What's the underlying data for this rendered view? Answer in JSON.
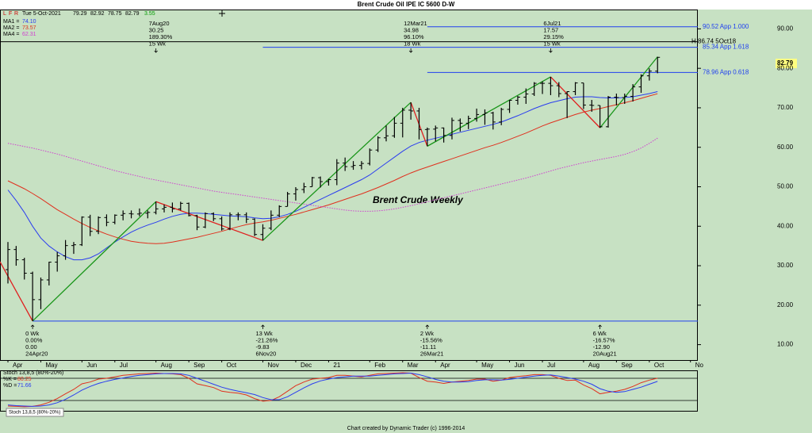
{
  "chart_data": {
    "type": "ohlc",
    "title": "Brent Crude Oil IPE IC 5600 D-W",
    "label": "Brent Crude Weekly",
    "date": "Tue 5-Oct-2021",
    "change": 3.55,
    "toolbar": [
      "L",
      "F",
      "R"
    ],
    "footer": "Chart created by Dynamic Trader  (c)  1996-2014",
    "categories": [
      "Apr",
      null,
      null,
      null,
      "May",
      null,
      null,
      null,
      null,
      "Jun",
      null,
      null,
      null,
      "Jul",
      null,
      null,
      null,
      null,
      "Aug",
      null,
      null,
      null,
      "Sep",
      null,
      null,
      null,
      "Oct",
      null,
      null,
      null,
      null,
      "Nov",
      null,
      null,
      null,
      "Dec",
      null,
      null,
      null,
      "21",
      null,
      null,
      null,
      null,
      "Feb",
      null,
      null,
      null,
      "Mar",
      null,
      null,
      null,
      "Apr",
      null,
      null,
      null,
      null,
      "May",
      null,
      null,
      null,
      "Jun",
      null,
      null,
      null,
      "Jul",
      null,
      null,
      null,
      null,
      "Aug",
      null,
      null,
      null,
      "Sep",
      null,
      null,
      null,
      "Oct",
      null,
      null,
      null,
      null,
      "No"
    ],
    "open": [
      29.0,
      34.1,
      31.5,
      28.1,
      21.4,
      26.4,
      30.9,
      32.5,
      35.1,
      35.3,
      42.3,
      38.7,
      42.2,
      41.0,
      42.8,
      43.2,
      43.1,
      43.3,
      43.5,
      44.4,
      44.8,
      44.4,
      45.8,
      42.7,
      39.8,
      43.2,
      41.9,
      39.3,
      42.9,
      42.9,
      41.8,
      37.9,
      39.5,
      42.8,
      45.0,
      48.2,
      49.3,
      50.0,
      52.3,
      51.3,
      51.8,
      56.0,
      55.1,
      55.4,
      55.9,
      59.3,
      62.4,
      62.9,
      66.1,
      69.4,
      69.2,
      64.5,
      64.6,
      64.9,
      63.0,
      66.8,
      66.1,
      67.3,
      68.3,
      68.7,
      66.4,
      69.6,
      71.9,
      72.7,
      73.5,
      76.2,
      76.2,
      75.6,
      73.6,
      74.1,
      76.3,
      70.7,
      70.6,
      65.2,
      72.7,
      72.6,
      72.9,
      75.3,
      78.1,
      79.29,
      null,
      null,
      null,
      null
    ],
    "high": [
      36.0,
      35.0,
      32.0,
      28.5,
      27.0,
      31.0,
      33.5,
      36.5,
      36.0,
      42.5,
      42.9,
      42.5,
      43.0,
      43.0,
      44.0,
      44.0,
      44.5,
      44.0,
      46.23,
      45.5,
      46.0,
      46.2,
      46.0,
      42.9,
      43.5,
      43.5,
      42.5,
      43.5,
      43.5,
      43.5,
      42.0,
      40.5,
      44.0,
      45.3,
      48.7,
      49.9,
      51.0,
      52.5,
      52.6,
      52.0,
      57.0,
      57.4,
      56.5,
      56.5,
      59.7,
      62.8,
      65.5,
      67.7,
      70.0,
      71.38,
      70.0,
      65.0,
      65.5,
      65.0,
      67.5,
      67.3,
      68.0,
      69.8,
      69.6,
      69.0,
      70.0,
      72.0,
      73.0,
      74.9,
      76.5,
      76.7,
      77.84,
      76.5,
      74.2,
      76.5,
      76.3,
      72.0,
      70.6,
      73.0,
      73.6,
      73.6,
      76.0,
      78.5,
      80.0,
      82.92,
      null,
      null,
      null,
      null
    ],
    "low": [
      25.5,
      30.0,
      26.5,
      15.98,
      19.0,
      25.0,
      28.5,
      31.5,
      33.0,
      35.0,
      37.5,
      38.0,
      40.0,
      40.5,
      41.5,
      42.0,
      42.5,
      42.0,
      43.0,
      43.5,
      43.5,
      44.0,
      42.5,
      39.0,
      39.5,
      41.3,
      38.9,
      39.0,
      41.5,
      40.8,
      37.5,
      36.4,
      39.0,
      42.3,
      45.0,
      46.5,
      48.4,
      50.0,
      49.8,
      50.3,
      50.4,
      54.0,
      54.3,
      54.4,
      55.4,
      58.8,
      61.5,
      62.4,
      62.5,
      67.0,
      62.0,
      60.27,
      61.5,
      61.2,
      62.0,
      64.0,
      64.6,
      66.5,
      65.7,
      64.5,
      65.6,
      68.7,
      70.8,
      71.0,
      73.0,
      73.5,
      73.2,
      72.7,
      67.4,
      73.2,
      69.7,
      69.0,
      64.94,
      65.0,
      70.6,
      71.0,
      71.6,
      73.8,
      76.9,
      78.75,
      null,
      null,
      null,
      null
    ],
    "close": [
      34.1,
      31.5,
      28.1,
      21.4,
      26.4,
      30.9,
      32.5,
      35.1,
      35.3,
      42.3,
      38.7,
      42.2,
      41.0,
      42.8,
      43.2,
      43.1,
      43.3,
      43.5,
      44.4,
      44.8,
      44.4,
      45.8,
      42.7,
      39.8,
      43.2,
      41.9,
      39.3,
      42.9,
      42.9,
      41.8,
      37.9,
      39.5,
      42.8,
      45.0,
      48.2,
      49.3,
      50.0,
      52.3,
      51.3,
      51.8,
      56.0,
      55.1,
      55.4,
      55.9,
      59.3,
      62.4,
      62.9,
      66.1,
      69.4,
      69.2,
      64.5,
      64.6,
      64.9,
      63.0,
      66.8,
      66.1,
      67.3,
      68.3,
      68.7,
      66.4,
      69.6,
      71.9,
      72.7,
      73.5,
      76.2,
      76.2,
      75.6,
      73.6,
      74.1,
      76.3,
      70.7,
      70.6,
      65.2,
      72.7,
      72.6,
      72.9,
      75.3,
      78.1,
      79.3,
      82.79,
      null,
      null,
      null,
      null
    ],
    "color": "#000000",
    "series": [
      {
        "name": "MA1 =",
        "color": "#2a3cf0",
        "value_label": "74.10",
        "values": [
          49.2,
          46.5,
          43.5,
          40,
          37,
          35,
          33.5,
          32.3,
          31.5,
          31.5,
          32,
          33,
          34.5,
          36,
          37.3,
          38.5,
          39.5,
          40.3,
          41,
          41.8,
          42.5,
          43,
          43.3,
          43.3,
          43.2,
          43,
          42.8,
          42.6,
          42.5,
          42.4,
          42.1,
          41.9,
          42,
          42.4,
          43,
          43.8,
          44.8,
          45.8,
          46.8,
          47.8,
          48.8,
          49.8,
          50.8,
          51.8,
          53,
          54.5,
          56,
          57.5,
          59,
          60.3,
          61.2,
          61.8,
          62.3,
          62.8,
          63.3,
          63.8,
          64.3,
          64.8,
          65.3,
          65.8,
          66.4,
          67.2,
          68,
          68.9,
          69.8,
          70.6,
          71.3,
          71.8,
          72.3,
          72.7,
          72.8,
          72.8,
          72.6,
          72.5,
          72.5,
          72.6,
          72.8,
          73.2,
          73.6,
          74.1,
          null,
          null,
          null,
          null
        ]
      },
      {
        "name": "MA2 =",
        "color": "#e0301e",
        "value_label": "73.57",
        "values": [
          51.5,
          50.5,
          49.5,
          48.3,
          47,
          45.6,
          44.2,
          43,
          41.8,
          40.7,
          39.7,
          38.8,
          38,
          37.3,
          36.7,
          36.2,
          35.9,
          35.7,
          35.6,
          35.7,
          36,
          36.4,
          36.8,
          37.2,
          37.7,
          38.2,
          38.7,
          39.3,
          39.9,
          40.4,
          40.8,
          41.1,
          41.5,
          42,
          42.5,
          43,
          43.6,
          44.2,
          44.8,
          45.4,
          46.1,
          46.8,
          47.5,
          48.2,
          49,
          49.8,
          50.7,
          51.6,
          52.6,
          53.5,
          54.3,
          55,
          55.7,
          56.4,
          57.1,
          57.8,
          58.5,
          59.2,
          59.9,
          60.5,
          61.2,
          62,
          62.8,
          63.6,
          64.5,
          65.4,
          66.2,
          66.9,
          67.6,
          68.3,
          68.9,
          69.4,
          69.8,
          70.3,
          70.8,
          71.3,
          71.8,
          72.4,
          73,
          73.57,
          null,
          null,
          null,
          null
        ]
      },
      {
        "name": "MA4 =",
        "color": "#d040d0",
        "value_label": "62.31",
        "style": "dotted",
        "values": [
          61,
          60.6,
          60.2,
          59.8,
          59.3,
          58.8,
          58.3,
          57.7,
          57.1,
          56.5,
          55.9,
          55.3,
          54.7,
          54.1,
          53.6,
          53.1,
          52.6,
          52.1,
          51.7,
          51.3,
          50.9,
          50.5,
          50.1,
          49.7,
          49.3,
          48.9,
          48.6,
          48.3,
          48,
          47.7,
          47.4,
          47.1,
          46.8,
          46.5,
          46.2,
          45.9,
          45.6,
          45.3,
          45,
          44.7,
          44.4,
          44.1,
          43.9,
          43.8,
          43.8,
          43.9,
          44.1,
          44.4,
          44.8,
          45.2,
          45.7,
          46.2,
          46.7,
          47.2,
          47.7,
          48.2,
          48.7,
          49.2,
          49.7,
          50.2,
          50.7,
          51.2,
          51.7,
          52.2,
          52.8,
          53.4,
          54,
          54.6,
          55.1,
          55.6,
          56.1,
          56.5,
          56.9,
          57.3,
          57.7,
          58.2,
          58.9,
          59.8,
          61,
          62.31,
          null,
          null,
          null,
          null
        ]
      }
    ],
    "swings": {
      "x": [
        0,
        3,
        18,
        31,
        49,
        51,
        66,
        72,
        79
      ],
      "values": [
        31,
        15.98,
        46.23,
        36.4,
        71.38,
        60.27,
        77.84,
        64.94,
        82.92
      ],
      "up_color": "#1a961a",
      "down_color": "#e01e1e"
    },
    "levels": [
      {
        "value": 90.52,
        "label": "90.52 App 1.000",
        "start": 51,
        "color": "#2040f0"
      },
      {
        "value": 86.74,
        "label": "H 86.74 5Oct18",
        "color": "#000000"
      },
      {
        "value": 85.34,
        "label": "85.34 App 1.618",
        "start": 31,
        "color": "#2040f0"
      },
      {
        "value": 78.96,
        "label": "78.96 App 0.618",
        "start": 51,
        "color": "#2040f0"
      },
      {
        "value": 15.98,
        "start": 3,
        "color": "#2040f0"
      }
    ],
    "annotations": [
      {
        "at": 18,
        "side": "top",
        "lines": [
          "7Aug20",
          "30.25",
          "189.30%",
          "15 Wk"
        ]
      },
      {
        "at": 49,
        "side": "top",
        "lines": [
          "12Mar21",
          "34.98",
          "96.10%",
          "18 Wk"
        ]
      },
      {
        "at": 66,
        "side": "top",
        "lines": [
          "6Jul21",
          "17.57",
          "29.15%",
          "15 Wk"
        ]
      },
      {
        "at": 3,
        "side": "bottom",
        "lines": [
          "0 Wk",
          "0.00%",
          "0.00",
          "24Apr20"
        ]
      },
      {
        "at": 31,
        "side": "bottom",
        "lines": [
          "13 Wk",
          "-21.26%",
          "-9.83",
          "6Nov20"
        ]
      },
      {
        "at": 51,
        "side": "bottom",
        "lines": [
          "2 Wk",
          "-15.56%",
          "-11.11",
          "26Mar21"
        ]
      },
      {
        "at": 72,
        "side": "bottom",
        "lines": [
          "6 Wk",
          "-16.57%",
          "-12.90",
          "20Aug21"
        ]
      }
    ],
    "ylim": [
      6.1,
      94.7
    ],
    "yticks": [
      {
        "value": 10,
        "label": "10.00"
      },
      {
        "value": 20,
        "label": "20.00"
      },
      {
        "value": 30,
        "label": "30.00"
      },
      {
        "value": 40,
        "label": "40.00"
      },
      {
        "value": 50,
        "label": "50.00"
      },
      {
        "value": 60,
        "label": "60.00"
      },
      {
        "value": 70,
        "label": "70.00"
      },
      {
        "value": 80,
        "label": "80.00"
      },
      {
        "value": 90,
        "label": "90.00"
      }
    ],
    "stoch": {
      "label": "Stoch 13,8,5 (80%-20%)",
      "ylim": [
        0,
        100
      ],
      "levels": [
        80,
        20
      ],
      "series": [
        {
          "name": "%K =",
          "color": "#e0301e",
          "values": [
            5,
            4,
            3,
            4,
            8,
            15,
            25,
            38,
            50,
            65,
            70,
            78,
            80,
            84,
            88,
            90,
            92,
            93,
            94,
            93,
            92,
            90,
            80,
            65,
            60,
            55,
            45,
            42,
            40,
            35,
            25,
            18,
            20,
            30,
            45,
            60,
            70,
            78,
            80,
            82,
            88,
            88,
            86,
            84,
            88,
            92,
            93,
            94,
            95,
            94,
            82,
            72,
            70,
            66,
            70,
            72,
            74,
            78,
            78,
            72,
            75,
            82,
            85,
            87,
            90,
            90,
            88,
            80,
            74,
            75,
            62,
            52,
            38,
            42,
            45,
            50,
            58,
            68,
            75,
            80.25,
            null,
            null,
            null,
            null
          ]
        },
        {
          "name": "%D =",
          "color": "#2a3cf0",
          "values": [
            8,
            6,
            5,
            4,
            5,
            8,
            14,
            23,
            35,
            48,
            58,
            66,
            72,
            77,
            81,
            85,
            88,
            90,
            92,
            93,
            93,
            92,
            88,
            80,
            72,
            64,
            56,
            50,
            45,
            41,
            36,
            28,
            22,
            22,
            30,
            42,
            54,
            65,
            73,
            78,
            82,
            84,
            86,
            86,
            86,
            88,
            90,
            92,
            93,
            94,
            90,
            84,
            77,
            72,
            70,
            70,
            71,
            74,
            76,
            76,
            75,
            77,
            80,
            83,
            86,
            88,
            89,
            86,
            82,
            78,
            72,
            64,
            52,
            45,
            42,
            44,
            50,
            56,
            64,
            71.66,
            null,
            null,
            null,
            null
          ]
        }
      ]
    }
  }
}
